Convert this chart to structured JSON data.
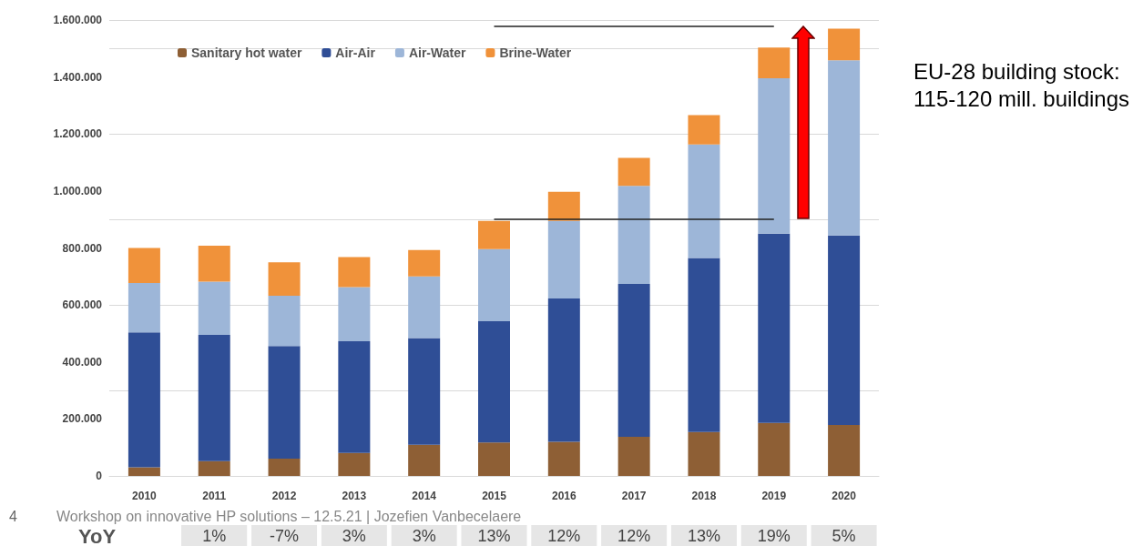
{
  "chart_data": {
    "type": "bar",
    "stacked": true,
    "categories": [
      "2010",
      "2011",
      "2012",
      "2013",
      "2014",
      "2015",
      "2016",
      "2017",
      "2018",
      "2019",
      "2020"
    ],
    "series": [
      {
        "name": "Sanitary hot water",
        "color": "#8e5f35",
        "values": [
          30000,
          52000,
          61000,
          81000,
          109000,
          117000,
          120000,
          137000,
          154000,
          186000,
          179000
        ]
      },
      {
        "name": "Air-Air",
        "color": "#2f4e96",
        "values": [
          474000,
          443000,
          395000,
          392000,
          375000,
          426000,
          503000,
          537000,
          611000,
          664000,
          665000
        ]
      },
      {
        "name": "Air-Water",
        "color": "#9db6d8",
        "values": [
          173000,
          187000,
          176000,
          190000,
          216000,
          253000,
          272000,
          344000,
          398000,
          546000,
          615000
        ]
      },
      {
        "name": "Brine-Water",
        "color": "#f0923a",
        "values": [
          123000,
          126000,
          118000,
          105000,
          93000,
          99000,
          102000,
          98000,
          103000,
          107000,
          111000
        ]
      }
    ],
    "ylim": [
      0,
      1600000
    ],
    "yticks": [
      {
        "value": 0,
        "label": "0"
      },
      {
        "value": 200000,
        "label": "200.000"
      },
      {
        "value": 400000,
        "label": "400.000"
      },
      {
        "value": 600000,
        "label": "600.000"
      },
      {
        "value": 800000,
        "label": "800.000"
      },
      {
        "value": 1000000,
        "label": "1.000.000"
      },
      {
        "value": 1200000,
        "label": "1.200.000"
      },
      {
        "value": 1400000,
        "label": "1.400.000"
      },
      {
        "value": 1600000,
        "label": "1.600.000"
      }
    ],
    "grid": "y",
    "legend": "top left",
    "ref_lines": [
      {
        "axis": "y",
        "value": 900000,
        "label": null,
        "color": "#222222"
      },
      {
        "axis": "y",
        "value": 1580000,
        "label": null,
        "color": "#222222"
      }
    ],
    "annotations": [
      "EU-28 building stock: 115-120 mill. buildings",
      "4",
      "Workshop on innovative HP solutions – 12.5.21 | Jozefien Vanbecelaere",
      "YoY",
      "1%",
      "-7%",
      "3%",
      "3%",
      "13%",
      "12%",
      "12%",
      "13%",
      "19%",
      "5%"
    ]
  }
}
